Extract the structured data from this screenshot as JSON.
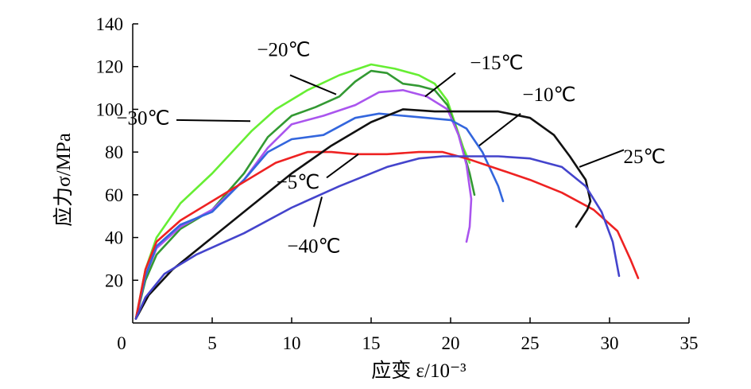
{
  "chart_data": {
    "type": "line",
    "xlabel": "应变 ε/10⁻³",
    "ylabel": "应力σ/MPa",
    "xlim": [
      0,
      35
    ],
    "ylim": [
      0,
      140
    ],
    "xticks": [
      0,
      5,
      10,
      15,
      20,
      25,
      30,
      35
    ],
    "yticks": [
      20,
      40,
      60,
      80,
      100,
      120,
      140
    ],
    "grid": false,
    "legend": "none",
    "series": [
      {
        "name": "−30℃",
        "color": "#66ee33",
        "points": [
          [
            0.2,
            2
          ],
          [
            0.8,
            25
          ],
          [
            1.5,
            40
          ],
          [
            3,
            56
          ],
          [
            5,
            70
          ],
          [
            7.5,
            90
          ],
          [
            9,
            100
          ],
          [
            11,
            109
          ],
          [
            13,
            116
          ],
          [
            15,
            121
          ],
          [
            16.5,
            119
          ],
          [
            18,
            116
          ],
          [
            19,
            112
          ],
          [
            19.8,
            104
          ],
          [
            20.3,
            93
          ],
          [
            20.8,
            82
          ],
          [
            21.2,
            75
          ]
        ]
      },
      {
        "name": "−20℃",
        "color": "#339933",
        "points": [
          [
            0.2,
            2
          ],
          [
            0.8,
            20
          ],
          [
            1.5,
            32
          ],
          [
            3,
            44
          ],
          [
            5,
            53
          ],
          [
            7,
            70
          ],
          [
            8.5,
            87
          ],
          [
            10,
            97
          ],
          [
            11.5,
            101
          ],
          [
            13,
            106
          ],
          [
            14,
            113
          ],
          [
            15,
            118
          ],
          [
            16,
            117
          ],
          [
            17,
            112
          ],
          [
            18,
            111
          ],
          [
            19,
            109
          ],
          [
            19.8,
            102
          ],
          [
            20.5,
            88
          ],
          [
            21.2,
            70
          ],
          [
            21.5,
            60
          ]
        ]
      },
      {
        "name": "−15℃",
        "color": "#aa55ee",
        "points": [
          [
            0.2,
            2
          ],
          [
            0.8,
            22
          ],
          [
            1.5,
            35
          ],
          [
            3,
            45
          ],
          [
            5,
            53
          ],
          [
            7,
            67
          ],
          [
            8.5,
            82
          ],
          [
            10,
            93
          ],
          [
            12,
            97
          ],
          [
            14,
            102
          ],
          [
            15.5,
            108
          ],
          [
            17,
            109
          ],
          [
            18.5,
            106
          ],
          [
            19.8,
            100
          ],
          [
            20.5,
            88
          ],
          [
            21,
            74
          ],
          [
            21.3,
            58
          ],
          [
            21.2,
            45
          ],
          [
            21,
            38
          ]
        ]
      },
      {
        "name": "−10℃",
        "color": "#3366dd",
        "points": [
          [
            0.2,
            2
          ],
          [
            0.8,
            22
          ],
          [
            1.5,
            36
          ],
          [
            3,
            46
          ],
          [
            5,
            52
          ],
          [
            7,
            67
          ],
          [
            8.5,
            80
          ],
          [
            10,
            86
          ],
          [
            12,
            88
          ],
          [
            14,
            96
          ],
          [
            15.5,
            98
          ],
          [
            17,
            97
          ],
          [
            18.5,
            96
          ],
          [
            20,
            95
          ],
          [
            21,
            91
          ],
          [
            22,
            80
          ],
          [
            23,
            64
          ],
          [
            23.3,
            57
          ]
        ]
      },
      {
        "name": "−5℃",
        "color": "#ee2222",
        "points": [
          [
            0.2,
            2
          ],
          [
            0.8,
            25
          ],
          [
            1.5,
            38
          ],
          [
            3,
            48
          ],
          [
            5,
            57
          ],
          [
            7,
            66
          ],
          [
            9,
            75
          ],
          [
            11,
            80
          ],
          [
            12.5,
            80
          ],
          [
            14,
            79
          ],
          [
            16,
            79
          ],
          [
            18,
            80
          ],
          [
            19.5,
            80
          ],
          [
            21,
            77
          ],
          [
            23,
            72
          ],
          [
            25,
            67
          ],
          [
            27,
            61
          ],
          [
            29,
            53
          ],
          [
            30.5,
            43
          ],
          [
            31.3,
            30
          ],
          [
            31.8,
            21
          ]
        ]
      },
      {
        "name": "25℃",
        "color": "#111111",
        "points": [
          [
            0.2,
            2
          ],
          [
            1,
            13
          ],
          [
            2.5,
            25
          ],
          [
            5,
            40
          ],
          [
            7.5,
            55
          ],
          [
            10,
            70
          ],
          [
            12.5,
            83
          ],
          [
            15,
            94
          ],
          [
            17,
            100
          ],
          [
            19,
            99
          ],
          [
            21,
            99
          ],
          [
            23,
            99
          ],
          [
            25,
            96
          ],
          [
            26.5,
            88
          ],
          [
            27.5,
            78
          ],
          [
            28.5,
            67
          ],
          [
            28.8,
            57
          ],
          [
            28.6,
            53
          ],
          [
            27.9,
            45
          ]
        ]
      },
      {
        "name": "−40℃",
        "color": "#4444cc",
        "points": [
          [
            0.2,
            2
          ],
          [
            0.8,
            12
          ],
          [
            2,
            23
          ],
          [
            4,
            32
          ],
          [
            7,
            42
          ],
          [
            10,
            54
          ],
          [
            13,
            64
          ],
          [
            16,
            73
          ],
          [
            18,
            77
          ],
          [
            19.5,
            78
          ],
          [
            21,
            78
          ],
          [
            23,
            78
          ],
          [
            25,
            77
          ],
          [
            27,
            73
          ],
          [
            28.5,
            64
          ],
          [
            29.5,
            52
          ],
          [
            30.2,
            38
          ],
          [
            30.5,
            26
          ],
          [
            30.6,
            22
          ]
        ]
      }
    ],
    "annotations": [
      {
        "id": "anno-n30",
        "text": "−30℃",
        "series": "−30℃",
        "tx": 0.65,
        "ty": 95,
        "lx1": 2.75,
        "ly1": 95,
        "lx2": 7.4,
        "ly2": 94.5
      },
      {
        "id": "anno-n20",
        "text": "−20℃",
        "series": "−20℃",
        "tx": 9.5,
        "ty": 127,
        "lx1": 9.9,
        "ly1": 116,
        "lx2": 12.8,
        "ly2": 107
      },
      {
        "id": "anno-n15",
        "text": "−15℃",
        "series": "−15℃",
        "tx": 22.9,
        "ty": 121,
        "lx1": 20.3,
        "ly1": 117,
        "lx2": 18.4,
        "ly2": 106
      },
      {
        "id": "anno-n10",
        "text": "−10℃",
        "series": "−10℃",
        "tx": 26.2,
        "ty": 106,
        "lx1": 24.4,
        "ly1": 98,
        "lx2": 21.8,
        "ly2": 83
      },
      {
        "id": "anno-n5",
        "text": "−5℃",
        "series": "−5℃",
        "tx": 10.4,
        "ty": 65,
        "lx1": 12.2,
        "ly1": 68,
        "lx2": 14.2,
        "ly2": 79
      },
      {
        "id": "anno-25",
        "text": "25℃",
        "series": "25℃",
        "tx": 32.2,
        "ty": 77,
        "lx1": 30.9,
        "ly1": 81,
        "lx2": 28.1,
        "ly2": 73
      },
      {
        "id": "anno-n40",
        "text": "−40℃",
        "series": "−40℃",
        "tx": 11.4,
        "ty": 35,
        "lx1": 11.4,
        "ly1": 45,
        "lx2": 11.9,
        "ly2": 59
      }
    ]
  }
}
